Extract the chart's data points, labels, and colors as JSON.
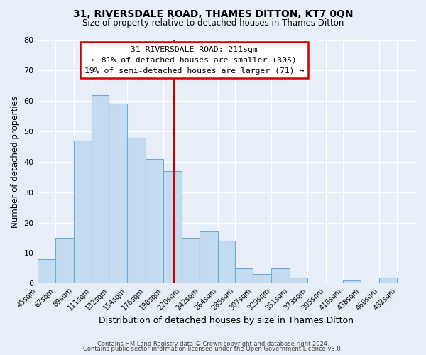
{
  "title": "31, RIVERSDALE ROAD, THAMES DITTON, KT7 0QN",
  "subtitle": "Size of property relative to detached houses in Thames Ditton",
  "xlabel": "Distribution of detached houses by size in Thames Ditton",
  "ylabel": "Number of detached properties",
  "bin_labels": [
    "45sqm",
    "67sqm",
    "89sqm",
    "111sqm",
    "132sqm",
    "154sqm",
    "176sqm",
    "198sqm",
    "220sqm",
    "242sqm",
    "264sqm",
    "285sqm",
    "307sqm",
    "329sqm",
    "351sqm",
    "373sqm",
    "395sqm",
    "416sqm",
    "438sqm",
    "460sqm",
    "482sqm"
  ],
  "bar_heights": [
    8,
    15,
    47,
    62,
    59,
    48,
    41,
    37,
    15,
    17,
    14,
    5,
    3,
    5,
    2,
    0,
    0,
    1,
    0,
    2,
    0
  ],
  "bar_color": "#c5dcf0",
  "bar_edge_color": "#6aacd4",
  "bin_edges": [
    45,
    67,
    89,
    111,
    132,
    154,
    176,
    198,
    220,
    242,
    264,
    285,
    307,
    329,
    351,
    373,
    395,
    416,
    438,
    460,
    482,
    504
  ],
  "vline_x": 211,
  "vline_color": "#cc0000",
  "annotation_title": "31 RIVERSDALE ROAD: 211sqm",
  "annotation_line1": "← 81% of detached houses are smaller (305)",
  "annotation_line2": "19% of semi-detached houses are larger (71) →",
  "annotation_box_color": "#ffffff",
  "annotation_box_edge": "#cc0000",
  "ylim": [
    0,
    80
  ],
  "yticks": [
    0,
    10,
    20,
    30,
    40,
    50,
    60,
    70,
    80
  ],
  "bg_color": "#e8eef7",
  "grid_color": "#ffffff",
  "footer1": "Contains HM Land Registry data © Crown copyright and database right 2024.",
  "footer2": "Contains public sector information licensed under the Open Government Licence v3.0."
}
